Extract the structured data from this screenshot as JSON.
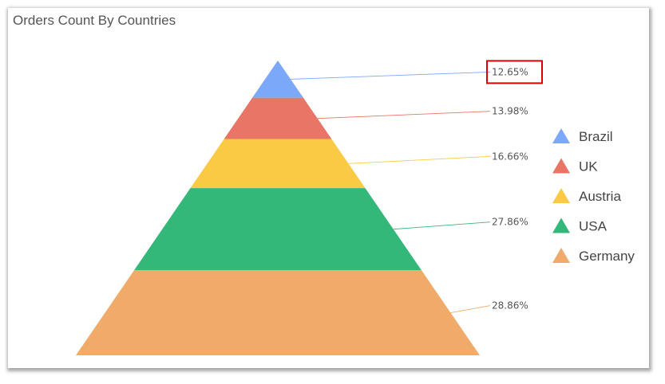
{
  "chart_data": {
    "type": "pyramid",
    "title": "Orders Count By Countries",
    "categories": [
      "Brazil",
      "UK",
      "Austria",
      "USA",
      "Germany"
    ],
    "values": [
      12.65,
      13.98,
      16.66,
      27.86,
      28.86
    ],
    "labels": [
      "12.65%",
      "13.98%",
      "16.66%",
      "27.86%",
      "28.86%"
    ],
    "colors": [
      "#7BA8F8",
      "#E87566",
      "#FBCA45",
      "#34B87A",
      "#F0AA69"
    ],
    "highlighted_label_index": 0,
    "highlight_color": "#DD0000",
    "legend_position": "right"
  }
}
